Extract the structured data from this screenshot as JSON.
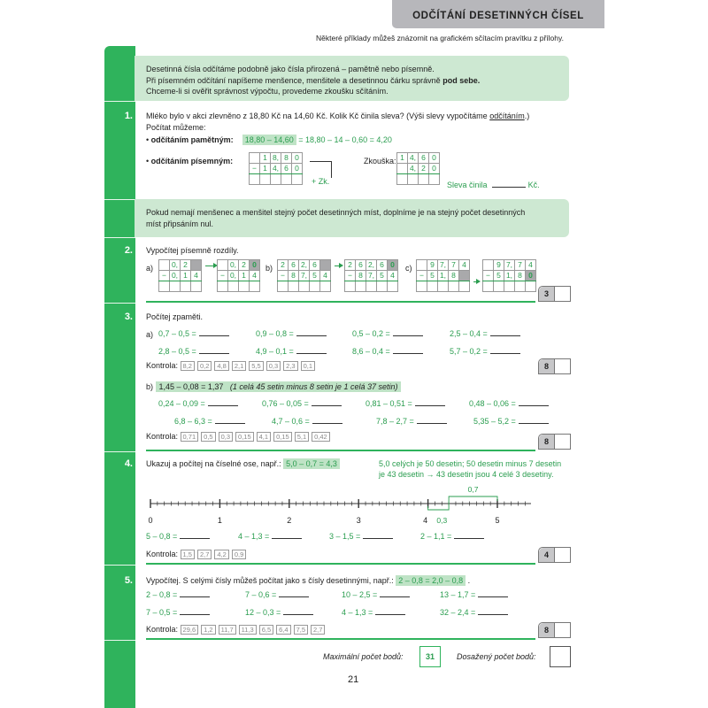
{
  "header": {
    "title": "ODČÍTÁNÍ DESETINNÝCH ČÍSEL",
    "subtitle": "Některé příklady můžeš znázornit na grafickém sčítacím pravítku z přílohy."
  },
  "info1": [
    "Desetinná čísla odčítáme podobně jako čísla přirozená – pamětně nebo písemně.",
    "Při písemném odčítání napíšeme menšence, menšitele a desetinnou čárku správně",
    "pod sebe.",
    "Chceme-li si ověřit správnost výpočtu, provedeme zkoušku sčítáním."
  ],
  "ex1": {
    "number": "1.",
    "line1": "Mléko bylo v akci zlevněno z 18,80 Kč na 14,60 Kč. Kolik Kč činila sleva? (Výši slevy vypočítáme",
    "line1_u": "odčítáním",
    "line1_end": ".)",
    "line2": "Počítat můžeme:",
    "bullet1_label": "odčítáním pamětným:",
    "bullet1_hl": "18,80 – 14,60",
    "bullet1_rest": "= 18,80 – 14 – 0,60 = 4,20",
    "bullet2_label": "odčítáním písemným:",
    "zk": "+ Zk.",
    "check_label": "Zkouška:",
    "answer_label": "Sleva činila",
    "answer_unit": "Kč.",
    "grid_main": [
      [
        "",
        "1",
        "8,",
        "8",
        "0"
      ],
      [
        "−",
        "1",
        "4,",
        "6",
        "0"
      ],
      [
        "",
        "",
        "",
        "",
        ""
      ]
    ],
    "grid_check": [
      [
        "1",
        "4,",
        "6",
        "0"
      ],
      [
        "",
        "4,",
        "2",
        "0"
      ],
      [
        "",
        "",
        "",
        ""
      ]
    ]
  },
  "info2": [
    "Pokud nemají menšenec a menšitel stejný počet desetinných míst, doplníme je na stejný počet desetinných",
    "míst připsáním nul."
  ],
  "ex2": {
    "number": "2.",
    "title": "Vypočítej písemně rozdíly.",
    "labels": [
      "a)",
      "b)",
      "c)"
    ],
    "grids": [
      [
        [
          "",
          "0,",
          "2",
          "#"
        ],
        [
          "−",
          "0,",
          "1",
          "4"
        ],
        [
          "",
          "",
          "",
          ""
        ]
      ],
      [
        [
          "",
          "0,",
          "2",
          "#0"
        ],
        [
          "−",
          "0,",
          "1",
          "4"
        ],
        [
          "",
          "",
          "",
          ""
        ]
      ],
      [
        [
          "2",
          "6",
          "2,",
          "6",
          "#"
        ],
        [
          "−",
          "8",
          "7,",
          "5",
          "4"
        ],
        [
          "",
          "",
          "",
          "",
          ""
        ]
      ],
      [
        [
          "2",
          "6",
          "2,",
          "6",
          "#0"
        ],
        [
          "−",
          "8",
          "7,",
          "5",
          "4"
        ],
        [
          "",
          "",
          "",
          "",
          ""
        ]
      ],
      [
        [
          "",
          "9",
          "7,",
          "7",
          "4"
        ],
        [
          "−",
          "5",
          "1,",
          "8",
          "#"
        ],
        [
          "",
          "",
          "",
          "",
          ""
        ]
      ],
      [
        [
          "",
          "9",
          "7,",
          "7",
          "4"
        ],
        [
          "−",
          "5",
          "1,",
          "8",
          "#0"
        ],
        [
          "",
          "",
          "",
          "",
          ""
        ]
      ]
    ],
    "score": "3"
  },
  "ex3": {
    "number": "3.",
    "title": "Počítej zpaměti.",
    "a_label": "a)",
    "a_items": [
      "0,7 – 0,5 =",
      "0,9 – 0,8 =",
      "0,5 – 0,2 =",
      "2,5 – 0,4 =",
      "2,8 – 0,5 =",
      "4,9 – 0,1 =",
      "8,6 – 0,4 =",
      "5,7 – 0,2 ="
    ],
    "kontrola_label": "Kontrola:",
    "a_kontrola": [
      "8,2",
      "0,2",
      "4,8",
      "2,1",
      "5,5",
      "0,3",
      "2,3",
      "0,1"
    ],
    "a_score": "8",
    "b_label": "b)",
    "b_example": "1,45 – 0,08 = 1,37",
    "b_example_note": "(1 celá 45 setin minus 8 setin je 1 celá 37 setin)",
    "b_items": [
      "0,24 – 0,09 =",
      "0,76 – 0,05 =",
      "0,81 – 0,51 =",
      "0,48 – 0,06 =",
      "6,8 – 6,3 =",
      "4,7 – 0,6 =",
      "7,8 – 2,7 =",
      "5,35 – 5,2 ="
    ],
    "b_kontrola": [
      "0,71",
      "0,5",
      "0,3",
      "0,15",
      "4,1",
      "0,15",
      "5,1",
      "0,42"
    ],
    "b_score": "8"
  },
  "ex4": {
    "number": "4.",
    "title": "Ukazuj a počítej na číselné ose, např.:",
    "example": "5,0 – 0,7 = 4,3",
    "note1": "5,0 celých je 50 desetin; 50 desetin minus 7 desetin",
    "note2": "je 43 desetin  →  43 desetin jsou 4 celé 3 desetiny.",
    "axis_labels": [
      "0",
      "1",
      "2",
      "3",
      "4",
      "5"
    ],
    "bracket_top": "0,7",
    "bracket_bottom": "0,3",
    "items": [
      "5 – 0,8 =",
      "4 – 1,3 =",
      "3 – 1,5 =",
      "2 – 1,1 ="
    ],
    "kontrola_label": "Kontrola:",
    "kontrola": [
      "1,5",
      "2,7",
      "4,2",
      "0,9"
    ],
    "score": "4"
  },
  "ex5": {
    "number": "5.",
    "title": "Vypočítej. S celými čísly můžeš počítat jako s čísly desetinnými, např.:",
    "example": "2 – 0,8 = 2,0 – 0,8",
    "items": [
      "2 – 0,8 =",
      "7 – 0,6 =",
      "10 – 2,5 =",
      "13 – 1,7 =",
      "7 – 0,5 =",
      "12 – 0,3 =",
      "4 – 1,3 =",
      "32 – 2,4 ="
    ],
    "kontrola_label": "Kontrola:",
    "kontrola": [
      "29,6",
      "1,2",
      "11,7",
      "11,3",
      "6,5",
      "6,4",
      "7,5",
      "2,7"
    ],
    "score": "8"
  },
  "footer": {
    "max_label": "Maximální počet bodů:",
    "max_value": "31",
    "achieved_label": "Dosažený počet bodů:",
    "page_number": "21"
  },
  "colors": {
    "green": "#2fb35c",
    "green_text": "#2a9d4f",
    "light_green": "#cde8d2",
    "header_gray": "#b7b7bb"
  }
}
